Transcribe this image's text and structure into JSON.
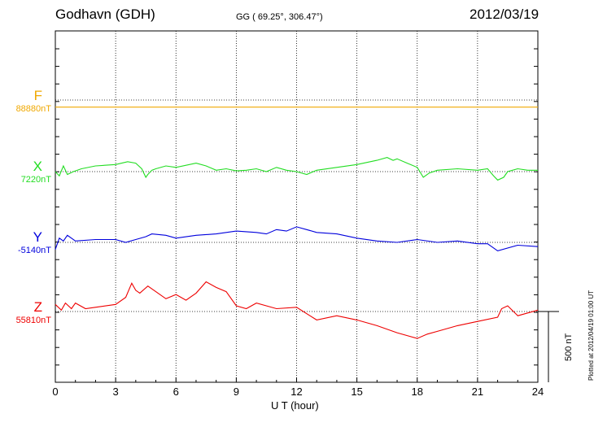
{
  "header": {
    "station": "Godhavn (GDH)",
    "coordinates": "GG ( 69.25°, 306.47°)",
    "date": "2012/03/19"
  },
  "footer": {
    "plotted": "Plotted at 2012/04/19 01:00 UT"
  },
  "chart_data": {
    "type": "line",
    "title": "Godhavn (GDH)",
    "xlabel": "U T (hour)",
    "xlim": [
      0,
      24
    ],
    "xticks": [
      "0",
      "3",
      "6",
      "9",
      "12",
      "15",
      "18",
      "21",
      "24"
    ],
    "grid": true,
    "scale_bar": {
      "label": "500 nT",
      "value_nT": 500
    },
    "series": [
      {
        "name": "F",
        "baseline": "88880nT",
        "color": "#f0a800",
        "x": [
          0,
          2,
          4,
          6,
          8,
          10,
          12,
          14,
          16,
          18,
          20,
          22,
          24
        ],
        "y": [
          -50,
          -50,
          -50,
          -50,
          -50,
          -50,
          -50,
          -50,
          -50,
          -50,
          -50,
          -50,
          -50
        ]
      },
      {
        "name": "X",
        "baseline": "7220nT",
        "color": "#22dd22",
        "x": [
          0,
          0.2,
          0.4,
          0.6,
          0.9,
          1.3,
          2,
          3,
          3.6,
          4,
          4.3,
          4.5,
          4.6,
          4.8,
          5,
          5.5,
          6,
          7,
          7.5,
          8,
          8.5,
          9,
          9.5,
          10,
          10.5,
          11,
          11.5,
          12,
          12.5,
          13,
          14,
          15,
          16,
          16.5,
          16.8,
          17,
          17.5,
          18,
          18.3,
          18.6,
          19,
          20,
          21,
          21.5,
          21.8,
          22,
          22.3,
          22.5,
          23,
          23.5,
          24
        ],
        "y": [
          0,
          -30,
          40,
          -20,
          0,
          20,
          40,
          50,
          70,
          60,
          20,
          -40,
          -20,
          10,
          20,
          40,
          30,
          60,
          40,
          10,
          20,
          5,
          10,
          20,
          0,
          30,
          10,
          0,
          -20,
          10,
          30,
          50,
          80,
          100,
          80,
          90,
          60,
          30,
          -40,
          -10,
          10,
          20,
          10,
          20,
          -30,
          -60,
          -40,
          0,
          20,
          10,
          10
        ]
      },
      {
        "name": "Y",
        "baseline": "-5140nT",
        "color": "#0000dd",
        "x": [
          0,
          0.2,
          0.4,
          0.6,
          1,
          2,
          3,
          3.5,
          4,
          4.5,
          4.8,
          5.5,
          6,
          7,
          8,
          9,
          10,
          10.5,
          11,
          11.5,
          12,
          12.5,
          13,
          14,
          15,
          16,
          17,
          18,
          19,
          20,
          21,
          21.5,
          22,
          23,
          24
        ],
        "y": [
          -50,
          30,
          10,
          50,
          10,
          20,
          20,
          0,
          20,
          40,
          60,
          50,
          30,
          50,
          60,
          80,
          70,
          60,
          90,
          80,
          110,
          90,
          70,
          60,
          30,
          10,
          0,
          20,
          0,
          10,
          -10,
          -10,
          -60,
          -20,
          -30
        ]
      },
      {
        "name": "Z",
        "baseline": "55810nT",
        "color": "#ee0000",
        "x": [
          0,
          0.3,
          0.5,
          0.8,
          1,
          1.5,
          2,
          3,
          3.5,
          3.8,
          4,
          4.2,
          4.6,
          5,
          5.5,
          6,
          6.5,
          7,
          7.5,
          8,
          8.5,
          9,
          9.5,
          10,
          11,
          12,
          13,
          14,
          15,
          16,
          17,
          18,
          18.5,
          19,
          20,
          21,
          22,
          22.2,
          22.5,
          23,
          24
        ],
        "y": [
          50,
          10,
          60,
          20,
          60,
          20,
          30,
          50,
          100,
          200,
          150,
          130,
          180,
          140,
          90,
          120,
          80,
          130,
          210,
          170,
          140,
          40,
          20,
          60,
          20,
          30,
          -60,
          -30,
          -60,
          -100,
          -150,
          -190,
          -160,
          -140,
          -100,
          -70,
          -40,
          20,
          40,
          -30,
          10
        ]
      }
    ]
  }
}
